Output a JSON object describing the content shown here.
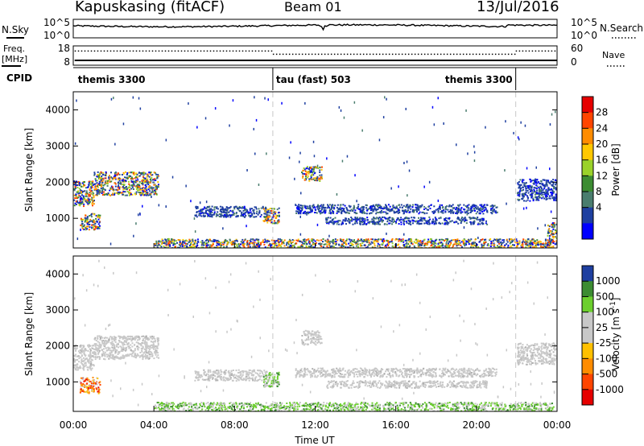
{
  "header": {
    "station": "Kapuskasing (fitACF)",
    "beam": "Beam 01",
    "date": "13/Jul/2016"
  },
  "left_labels": {
    "nsky": "N.Sky",
    "freq_line1": "Freq.",
    "freq_line2": "[MHz]",
    "cpid": "CPID"
  },
  "right_labels": {
    "nsearch": "N.Search",
    "nave": "Nave"
  },
  "colors": {
    "dashed_line": "#c8c8c8",
    "grey_scatter": "#c8c8c8"
  },
  "chart_data": [
    {
      "type": "line",
      "id": "noise",
      "left_ticks": [
        "10^5",
        "10^0"
      ],
      "right_ticks": [
        "10^5",
        "10^0"
      ],
      "note": "N.Sky noise trace, solid black"
    },
    {
      "type": "line",
      "id": "frequency",
      "left_ticks": [
        "18",
        "8"
      ],
      "right_ticks": [
        "60",
        "0"
      ],
      "freq_segments": [
        {
          "x0": 0.07,
          "x1": 24.0,
          "y": 10.5
        }
      ],
      "nave_segments": [
        {
          "x0": 0.07,
          "x1": 9.9,
          "y": 44
        },
        {
          "x0": 9.9,
          "x1": 21.95,
          "y": 34
        },
        {
          "x0": 21.95,
          "x1": 24.0,
          "y": 44
        }
      ]
    },
    {
      "type": "table",
      "id": "cpid",
      "segments": [
        {
          "label": "themis 3300",
          "start": 0.07,
          "end": 9.9
        },
        {
          "label": "tau (fast) 503",
          "start": 9.9,
          "end": 21.95
        },
        {
          "label": "themis 3300",
          "start": 21.95,
          "end": 24.0
        }
      ]
    },
    {
      "type": "heatmap",
      "id": "power",
      "ylabel": "Slant Range [km]",
      "yticks": [
        1000,
        2000,
        3000,
        4000
      ],
      "ylim": [
        180,
        4500
      ],
      "xlim": [
        0,
        24
      ],
      "colorbar": {
        "label": "Power [dB]",
        "ticks": [
          "28",
          "24",
          "20",
          "16",
          "12",
          "8",
          "4"
        ],
        "colors": [
          "#e60000",
          "#ff4500",
          "#ff8c00",
          "#ffc800",
          "#9ad22a",
          "#3c8c32",
          "#4a7d6e",
          "#1e3fa0",
          "#0000ff"
        ]
      },
      "dashed_times": [
        9.9,
        21.95
      ],
      "echo_regions": [
        {
          "t0": 0.0,
          "t1": 1.0,
          "r0": 1350,
          "r1": 2050,
          "value": "mixed"
        },
        {
          "t0": 1.0,
          "t1": 4.2,
          "r0": 1650,
          "r1": 2300,
          "value": "mixed"
        },
        {
          "t0": 0.3,
          "t1": 1.3,
          "r0": 700,
          "r1": 1150,
          "value": "mixed"
        },
        {
          "t0": 4.0,
          "t1": 23.8,
          "r0": 180,
          "r1": 450,
          "value": "mixed"
        },
        {
          "t0": 6.0,
          "t1": 9.6,
          "r0": 1050,
          "r1": 1350,
          "value": "low"
        },
        {
          "t0": 9.4,
          "t1": 10.2,
          "r0": 880,
          "r1": 1300,
          "value": "mixed"
        },
        {
          "t0": 11.3,
          "t1": 12.3,
          "r0": 2050,
          "r1": 2450,
          "value": "mixed"
        },
        {
          "t0": 11.0,
          "t1": 21.0,
          "r0": 1150,
          "r1": 1400,
          "value": "low"
        },
        {
          "t0": 12.5,
          "t1": 20.5,
          "r0": 850,
          "r1": 1050,
          "value": "low"
        },
        {
          "t0": 22.0,
          "t1": 24.0,
          "r0": 1500,
          "r1": 2100,
          "value": "low"
        },
        {
          "t0": 23.5,
          "t1": 24.0,
          "r0": 300,
          "r1": 900,
          "value": "mixed"
        }
      ]
    },
    {
      "type": "heatmap",
      "id": "velocity",
      "xlabel": "Time UT",
      "ylabel": "Slant Range [km]",
      "yticks": [
        1000,
        2000,
        3000,
        4000
      ],
      "ylim": [
        180,
        4500
      ],
      "xlim": [
        0,
        24
      ],
      "xticks": [
        "00:00",
        "04:00",
        "08:00",
        "12:00",
        "16:00",
        "20:00",
        "00:00"
      ],
      "colorbar": {
        "label": "Velocity [m s^-1]",
        "ticks": [
          "1000",
          "500",
          "100",
          "25",
          "-25",
          "-100",
          "-500",
          "-1000"
        ],
        "colors": [
          "#1e3fa0",
          "#3c8c32",
          "#6ccf2e",
          "#c8c8c8",
          "#c8c8c8",
          "#ffc000",
          "#ff8c00",
          "#ff4500",
          "#e60000"
        ]
      },
      "dashed_times": [
        9.9,
        21.95
      ],
      "echo_regions": [
        {
          "t0": 0.0,
          "t1": 1.0,
          "r0": 1350,
          "r1": 2050,
          "value": "ground"
        },
        {
          "t0": 1.0,
          "t1": 4.2,
          "r0": 1650,
          "r1": 2300,
          "value": "ground"
        },
        {
          "t0": 0.3,
          "t1": 1.3,
          "r0": 700,
          "r1": 1150,
          "value": "negative"
        },
        {
          "t0": 4.0,
          "t1": 23.8,
          "r0": 180,
          "r1": 450,
          "value": "positive"
        },
        {
          "t0": 6.0,
          "t1": 9.6,
          "r0": 1050,
          "r1": 1350,
          "value": "ground"
        },
        {
          "t0": 9.4,
          "t1": 10.2,
          "r0": 880,
          "r1": 1300,
          "value": "positive"
        },
        {
          "t0": 11.3,
          "t1": 12.3,
          "r0": 2050,
          "r1": 2450,
          "value": "ground"
        },
        {
          "t0": 11.0,
          "t1": 21.0,
          "r0": 1150,
          "r1": 1400,
          "value": "ground"
        },
        {
          "t0": 12.5,
          "t1": 20.5,
          "r0": 850,
          "r1": 1050,
          "value": "ground"
        },
        {
          "t0": 22.0,
          "t1": 24.0,
          "r0": 1500,
          "r1": 2100,
          "value": "ground"
        }
      ]
    }
  ]
}
